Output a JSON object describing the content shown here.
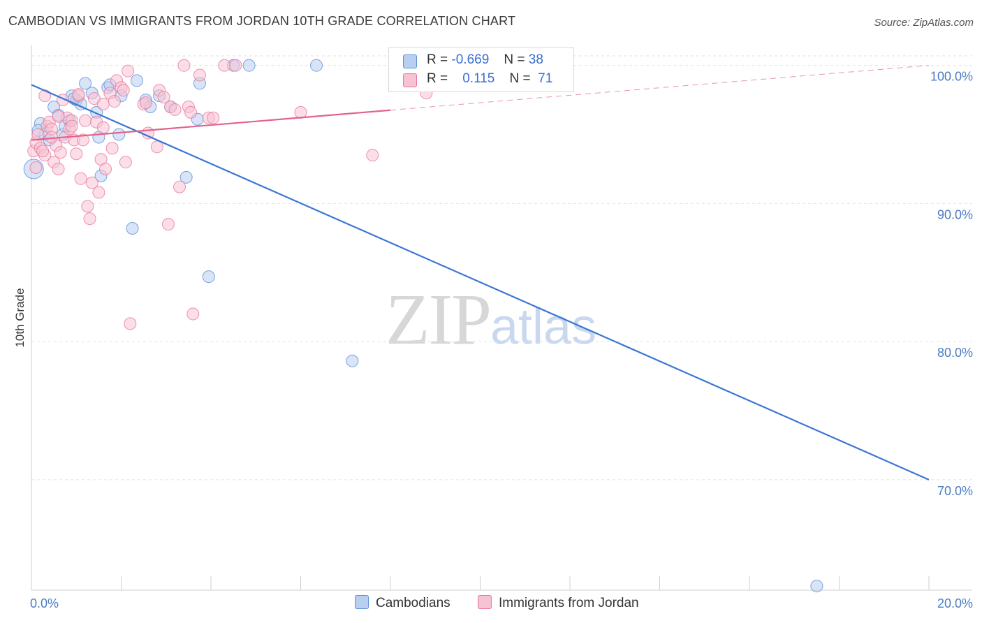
{
  "chart_data": {
    "type": "scatter",
    "title": "CAMBODIAN VS IMMIGRANTS FROM JORDAN 10TH GRADE CORRELATION CHART",
    "source": "Source: ZipAtlas.com",
    "xlabel": "",
    "ylabel": "10th Grade",
    "xlim": [
      0,
      20
    ],
    "ylim": [
      62,
      101.5
    ],
    "x_tick_labels": [
      "0.0%",
      "20.0%"
    ],
    "y_ticks": [
      70,
      80,
      90,
      100
    ],
    "y_tick_labels": [
      "70.0%",
      "80.0%",
      "90.0%",
      "100.0%"
    ],
    "grid": true,
    "watermark": {
      "main": "ZIP",
      "sub": "atlas"
    },
    "legend": {
      "position": "top-center",
      "rows": [
        {
          "r_label": "R =",
          "r_value": "-0.669",
          "n_label": "N =",
          "n_value": "38"
        },
        {
          "r_label": "R =",
          "r_value": "0.115",
          "n_label": "N =",
          "n_value": "71"
        }
      ]
    },
    "series": [
      {
        "name": "Cambodians",
        "color": "#5b8fd8",
        "fill": "#b9cff0",
        "trend": {
          "x0": 0,
          "y0": 98.6,
          "x1": 20,
          "y1": 70.0,
          "solid_until": 20
        },
        "points": [
          [
            0.2,
            95.8
          ],
          [
            0.3,
            95.0
          ],
          [
            0.4,
            94.6
          ],
          [
            0.5,
            97.0
          ],
          [
            0.6,
            96.4
          ],
          [
            0.7,
            95.0
          ],
          [
            0.75,
            95.6
          ],
          [
            0.85,
            96.0
          ],
          [
            0.9,
            97.8
          ],
          [
            1.0,
            97.5
          ],
          [
            1.1,
            97.2
          ],
          [
            1.2,
            98.7
          ],
          [
            1.35,
            98.0
          ],
          [
            1.45,
            96.6
          ],
          [
            1.5,
            94.8
          ],
          [
            1.55,
            92.0
          ],
          [
            1.7,
            98.4
          ],
          [
            1.75,
            98.6
          ],
          [
            1.95,
            95.0
          ],
          [
            2.0,
            97.8
          ],
          [
            2.25,
            88.2
          ],
          [
            2.35,
            98.9
          ],
          [
            2.55,
            97.5
          ],
          [
            2.65,
            97.0
          ],
          [
            2.85,
            97.8
          ],
          [
            3.1,
            97.0
          ],
          [
            3.45,
            91.9
          ],
          [
            3.7,
            96.1
          ],
          [
            3.75,
            98.7
          ],
          [
            3.95,
            84.7
          ],
          [
            4.5,
            100.0
          ],
          [
            4.85,
            100.0
          ],
          [
            6.35,
            100.0
          ],
          [
            7.15,
            78.6
          ],
          [
            17.5,
            62.3
          ],
          [
            0.05,
            92.5
          ],
          [
            0.15,
            95.3
          ],
          [
            0.95,
            97.6
          ]
        ]
      },
      {
        "name": "Immigrants from Jordan",
        "color": "#e8789c",
        "fill": "#f7c2d3",
        "trend": {
          "x0": 0,
          "y0": 94.6,
          "x1": 20,
          "y1": 100.0,
          "solid_until": 8.0
        },
        "points": [
          [
            0.05,
            93.8
          ],
          [
            0.1,
            94.4
          ],
          [
            0.15,
            95.0
          ],
          [
            0.2,
            94.0
          ],
          [
            0.3,
            93.5
          ],
          [
            0.35,
            95.6
          ],
          [
            0.4,
            95.9
          ],
          [
            0.45,
            95.4
          ],
          [
            0.5,
            93.0
          ],
          [
            0.55,
            94.2
          ],
          [
            0.6,
            92.5
          ],
          [
            0.65,
            93.7
          ],
          [
            0.7,
            97.5
          ],
          [
            0.75,
            94.8
          ],
          [
            0.8,
            96.2
          ],
          [
            0.85,
            95.4
          ],
          [
            0.9,
            96.0
          ],
          [
            0.95,
            94.6
          ],
          [
            1.0,
            93.6
          ],
          [
            1.05,
            97.8
          ],
          [
            1.1,
            91.8
          ],
          [
            1.15,
            94.6
          ],
          [
            1.2,
            96.0
          ],
          [
            1.25,
            89.8
          ],
          [
            1.3,
            88.9
          ],
          [
            1.35,
            91.5
          ],
          [
            1.4,
            97.6
          ],
          [
            1.45,
            95.9
          ],
          [
            1.5,
            90.8
          ],
          [
            1.55,
            93.2
          ],
          [
            1.6,
            95.5
          ],
          [
            1.65,
            92.5
          ],
          [
            1.75,
            98.0
          ],
          [
            1.8,
            94.0
          ],
          [
            1.85,
            97.4
          ],
          [
            1.9,
            98.9
          ],
          [
            2.0,
            98.4
          ],
          [
            2.05,
            98.2
          ],
          [
            2.1,
            93.0
          ],
          [
            2.15,
            99.6
          ],
          [
            2.2,
            81.3
          ],
          [
            2.5,
            97.2
          ],
          [
            2.55,
            97.3
          ],
          [
            2.6,
            95.1
          ],
          [
            2.8,
            94.1
          ],
          [
            2.85,
            98.2
          ],
          [
            2.95,
            97.7
          ],
          [
            3.05,
            88.5
          ],
          [
            3.1,
            97.0
          ],
          [
            3.2,
            96.8
          ],
          [
            3.3,
            91.2
          ],
          [
            3.4,
            100.0
          ],
          [
            3.5,
            97.0
          ],
          [
            3.55,
            96.6
          ],
          [
            3.6,
            82.0
          ],
          [
            3.75,
            99.3
          ],
          [
            3.95,
            96.2
          ],
          [
            4.05,
            96.2
          ],
          [
            4.3,
            100.0
          ],
          [
            4.55,
            100.0
          ],
          [
            6.0,
            96.6
          ],
          [
            7.6,
            93.5
          ],
          [
            0.1,
            92.6
          ],
          [
            0.25,
            93.8
          ],
          [
            0.3,
            97.8
          ],
          [
            0.45,
            94.8
          ],
          [
            0.6,
            96.3
          ],
          [
            0.9,
            95.6
          ],
          [
            1.05,
            97.9
          ],
          [
            1.6,
            97.2
          ],
          [
            8.8,
            98.0
          ]
        ]
      }
    ]
  }
}
